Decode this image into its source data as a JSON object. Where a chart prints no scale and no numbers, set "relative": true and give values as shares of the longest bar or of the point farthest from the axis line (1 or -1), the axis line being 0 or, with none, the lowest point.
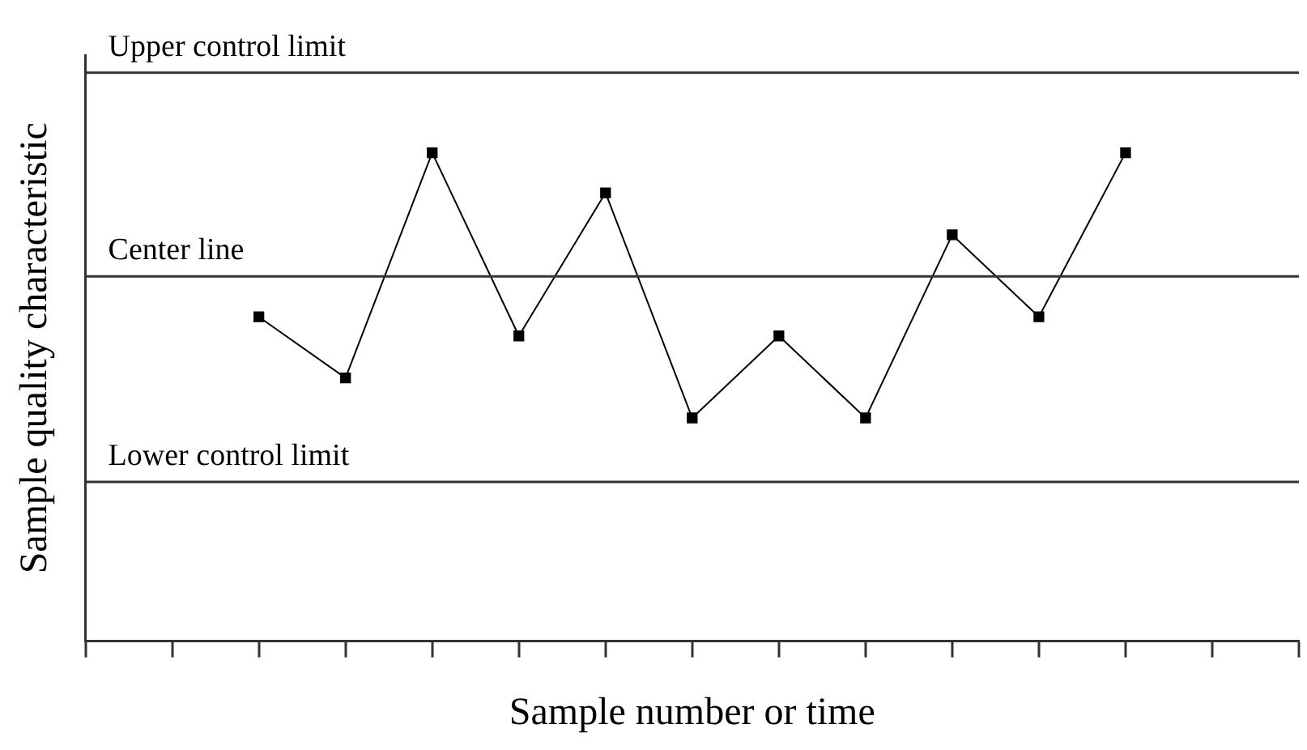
{
  "chart_data": {
    "type": "line",
    "xlabel": "Sample number or time",
    "ylabel": "Sample quality characteristic",
    "relative": true,
    "categories": [
      null,
      null,
      null,
      null,
      null,
      null,
      null,
      null,
      null,
      null,
      null,
      null,
      null,
      null,
      null
    ],
    "series": [
      {
        "color": "#000000",
        "values": [
          null,
          null,
          0.664,
          0.539,
          1,
          0.625,
          0.918,
          0.457,
          0.625,
          0.457,
          0.832,
          0.664,
          1,
          null,
          null
        ]
      }
    ],
    "marker": "square",
    "grid": false,
    "legend": false,
    "ref_lines": [
      {
        "axis": "y",
        "value": 1.164,
        "label": "Upper control limit",
        "color": "#333333"
      },
      {
        "axis": "y",
        "value": 0.747,
        "label": "Center line",
        "color": "#333333"
      },
      {
        "axis": "y",
        "value": 0.326,
        "label": "Lower control limit",
        "color": "#333333"
      }
    ]
  }
}
